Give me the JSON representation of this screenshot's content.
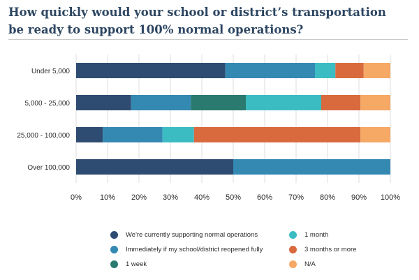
{
  "title_line1": "How quickly would your school or district’s transportation",
  "title_line2": "be ready to support 100% normal operations?",
  "colors": {
    "normal": "#2e4c72",
    "immediately": "#3489b2",
    "week": "#2a7a6f",
    "month": "#3bbcc2",
    "three_months": "#d86a3e",
    "na": "#f6a865"
  },
  "chart_data": {
    "type": "bar",
    "orientation": "horizontal",
    "stacked": true,
    "title": "How quickly would your school or district’s transportation be ready to support 100% normal operations?",
    "categories": [
      "Under 5,000",
      "5,000 - 25,000",
      "25,000 - 100,000",
      "Over 100,000"
    ],
    "series": [
      {
        "name": "We're currently supporting normal operations",
        "key": "normal",
        "values": [
          47.5,
          17.5,
          8.5,
          50
        ]
      },
      {
        "name": "Immediately if my school/district reopened fully",
        "key": "immediately",
        "values": [
          28.5,
          19,
          19,
          50
        ]
      },
      {
        "name": "1 week",
        "key": "week",
        "values": [
          0,
          17.5,
          0,
          0
        ]
      },
      {
        "name": "1 month",
        "key": "month",
        "values": [
          6.5,
          24,
          10,
          0
        ]
      },
      {
        "name": "3 months or more",
        "key": "three_months",
        "values": [
          9,
          12.5,
          53,
          0
        ]
      },
      {
        "name": "N/A",
        "key": "na",
        "values": [
          8.5,
          9.5,
          9.5,
          0
        ]
      }
    ],
    "xlim": [
      0,
      100
    ],
    "xticks": [
      "0%",
      "10%",
      "20%",
      "30%",
      "40%",
      "50%",
      "60%",
      "70%",
      "80%",
      "90%",
      "100%"
    ],
    "grid": true,
    "legend": [
      {
        "label": "We're currently supporting normal operations",
        "key": "normal"
      },
      {
        "label": "1 month",
        "key": "month"
      },
      {
        "label": "Immediately if my school/district reopened fully",
        "key": "immediately"
      },
      {
        "label": "3 months or more",
        "key": "three_months"
      },
      {
        "label": "1 week",
        "key": "week"
      },
      {
        "label": "N/A",
        "key": "na"
      }
    ]
  }
}
